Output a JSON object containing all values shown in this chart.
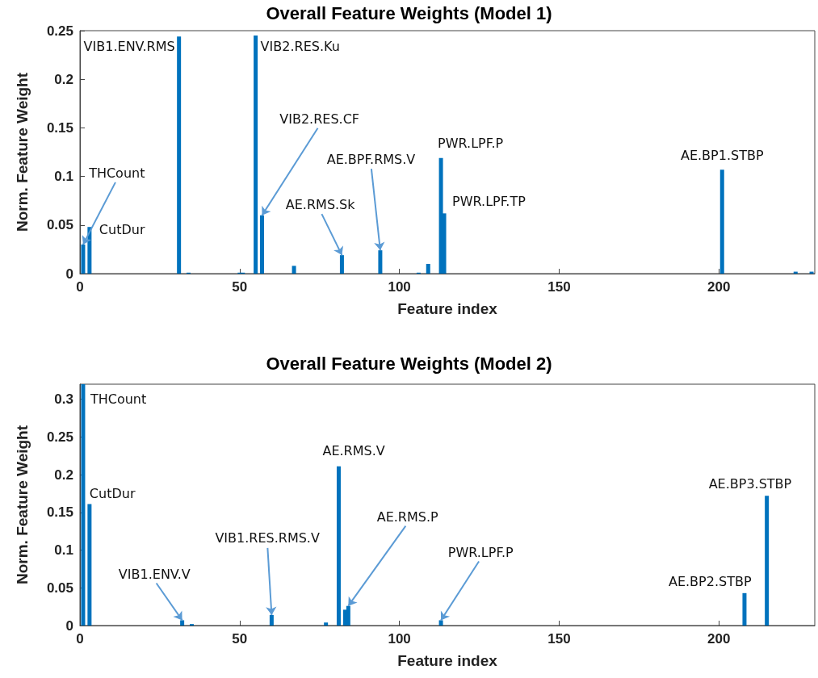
{
  "chart_data": [
    {
      "type": "bar",
      "title": "Overall Feature Weights (Model 1)",
      "xlabel": "Feature index",
      "ylabel": "Norm. Feature Weight",
      "x": [
        1,
        3,
        31,
        34,
        50,
        51,
        55,
        57,
        67,
        82,
        94,
        106,
        109,
        113,
        114,
        201,
        224,
        229
      ],
      "series": [
        {
          "color": "#0072bd",
          "values": [
            0.03,
            0.048,
            0.244,
            0.001,
            0.001,
            0.001,
            0.245,
            0.06,
            0.008,
            0.019,
            0.024,
            0.001,
            0.01,
            0.119,
            0.062,
            0.107,
            0.002,
            0.002
          ]
        }
      ],
      "xlim": [
        0,
        230
      ],
      "xticks": [
        0,
        50,
        100,
        150,
        200
      ],
      "ylim": [
        0,
        0.25
      ],
      "yticks": [
        0,
        0.05,
        0.1,
        0.15,
        0.2,
        0.25
      ],
      "grid": false,
      "annotations": [
        {
          "text": "THCount",
          "x": 1,
          "y": 0.03
        },
        {
          "text": "CutDur",
          "x": 3,
          "y": 0.048
        },
        {
          "text": "VIB1.ENV.RMS",
          "x": 31,
          "y": 0.244
        },
        {
          "text": "VIB2.RES.Ku",
          "x": 55,
          "y": 0.245
        },
        {
          "text": "VIB2.RES.CF",
          "x": 57,
          "y": 0.06
        },
        {
          "text": "AE.RMS.Sk",
          "x": 82,
          "y": 0.019
        },
        {
          "text": "AE.BPF.RMS.V",
          "x": 94,
          "y": 0.024
        },
        {
          "text": "PWR.LPF.P",
          "x": 113,
          "y": 0.119
        },
        {
          "text": "PWR.LPF.TP",
          "x": 114,
          "y": 0.062
        },
        {
          "text": "AE.BP1.STBP",
          "x": 201,
          "y": 0.107
        }
      ]
    },
    {
      "type": "bar",
      "title": "Overall Feature Weights (Model 2)",
      "xlabel": "Feature index",
      "ylabel": "Norm. Feature Weight",
      "x": [
        1,
        3,
        32,
        35,
        60,
        77,
        81,
        83,
        84,
        113,
        208,
        215
      ],
      "series": [
        {
          "color": "#0072bd",
          "values": [
            0.32,
            0.161,
            0.007,
            0.002,
            0.014,
            0.004,
            0.211,
            0.021,
            0.026,
            0.007,
            0.043,
            0.172
          ]
        }
      ],
      "xlim": [
        0,
        230
      ],
      "xticks": [
        0,
        50,
        100,
        150,
        200
      ],
      "ylim": [
        0,
        0.32
      ],
      "yticks": [
        0,
        0.05,
        0.1,
        0.15,
        0.2,
        0.25,
        0.3
      ],
      "grid": false,
      "annotations": [
        {
          "text": "THCount",
          "x": 1,
          "y": 0.32
        },
        {
          "text": "CutDur",
          "x": 3,
          "y": 0.161
        },
        {
          "text": "VIB1.ENV.V",
          "x": 32,
          "y": 0.007
        },
        {
          "text": "VIB1.RES.RMS.V",
          "x": 60,
          "y": 0.014
        },
        {
          "text": "AE.RMS.V",
          "x": 81,
          "y": 0.211
        },
        {
          "text": "AE.RMS.P",
          "x": 84,
          "y": 0.026
        },
        {
          "text": "PWR.LPF.P",
          "x": 113,
          "y": 0.007
        },
        {
          "text": "AE.BP2.STBP",
          "x": 208,
          "y": 0.043
        },
        {
          "text": "AE.BP3.STBP",
          "x": 215,
          "y": 0.172
        }
      ]
    }
  ]
}
